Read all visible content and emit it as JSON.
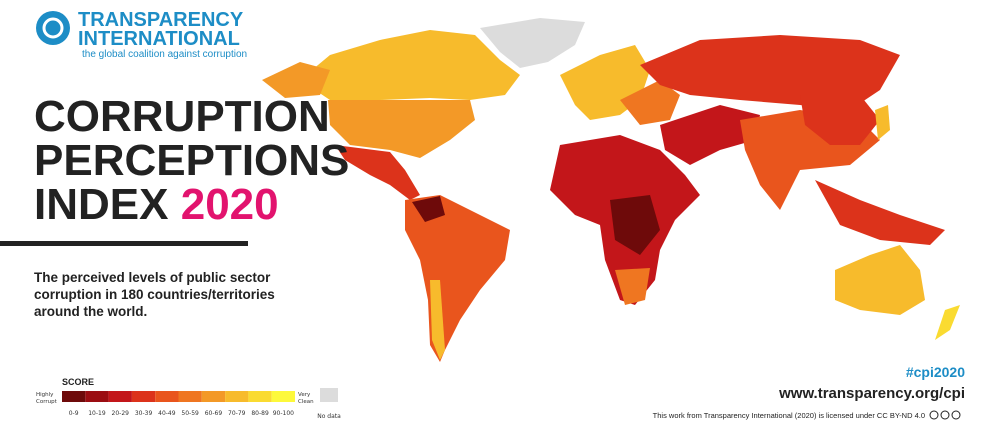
{
  "header": {
    "org_line1": "TRANSPARENCY",
    "org_line2": "INTERNATIONAL",
    "tagline": "the global coalition against corruption"
  },
  "title": {
    "line1": "CORRUPTION",
    "line2": "PERCEPTIONS",
    "line3": "INDEX",
    "year": "2020"
  },
  "description": [
    "The perceived levels of public sector",
    "corruption in 180 countries/territories",
    "around the world."
  ],
  "legend": {
    "title": "SCORE",
    "low_label": [
      "Highly",
      "Corrupt"
    ],
    "high_label": [
      "Very",
      "Clean"
    ],
    "ranges": [
      {
        "label": "0-9",
        "color": "#6e0a0a"
      },
      {
        "label": "10-19",
        "color": "#9b0d12"
      },
      {
        "label": "20-29",
        "color": "#c3161a"
      },
      {
        "label": "30-39",
        "color": "#dc331b"
      },
      {
        "label": "40-49",
        "color": "#e9551d"
      },
      {
        "label": "50-59",
        "color": "#ef7621"
      },
      {
        "label": "60-69",
        "color": "#f39927"
      },
      {
        "label": "70-79",
        "color": "#f7bb2c"
      },
      {
        "label": "80-89",
        "color": "#fadb31"
      },
      {
        "label": "90-100",
        "color": "#fdf93b"
      }
    ],
    "no_data": {
      "label": "No data",
      "color": "#dcdcdc"
    }
  },
  "footer": {
    "hashtag": "#cpi2020",
    "url": "www.transparency.org/cpi",
    "license": "This work from Transparency International (2020) is licensed under CC BY-ND 4.0"
  }
}
